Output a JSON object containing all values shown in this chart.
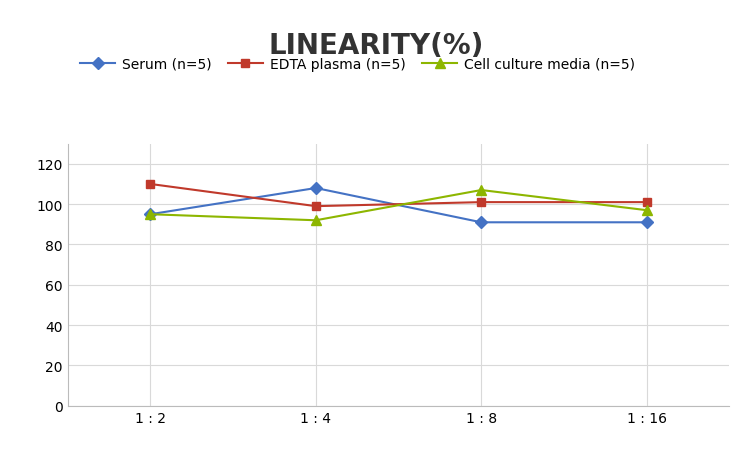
{
  "title": "LINEARITY(%)",
  "x_labels": [
    "1 : 2",
    "1 : 4",
    "1 : 8",
    "1 : 16"
  ],
  "x_positions": [
    0,
    1,
    2,
    3
  ],
  "series": [
    {
      "label": "Serum (n=5)",
      "values": [
        95,
        108,
        91,
        91
      ],
      "color": "#4472C4",
      "marker": "D",
      "markersize": 6,
      "linewidth": 1.5
    },
    {
      "label": "EDTA plasma (n=5)",
      "values": [
        110,
        99,
        101,
        101
      ],
      "color": "#C0392B",
      "marker": "s",
      "markersize": 6,
      "linewidth": 1.5
    },
    {
      "label": "Cell culture media (n=5)",
      "values": [
        95,
        92,
        107,
        97
      ],
      "color": "#8DB600",
      "marker": "^",
      "markersize": 7,
      "linewidth": 1.5
    }
  ],
  "ylim": [
    0,
    130
  ],
  "yticks": [
    0,
    20,
    40,
    60,
    80,
    100,
    120
  ],
  "grid_color": "#D9D9D9",
  "background_color": "#FFFFFF",
  "title_fontsize": 20,
  "legend_fontsize": 10,
  "tick_fontsize": 10
}
